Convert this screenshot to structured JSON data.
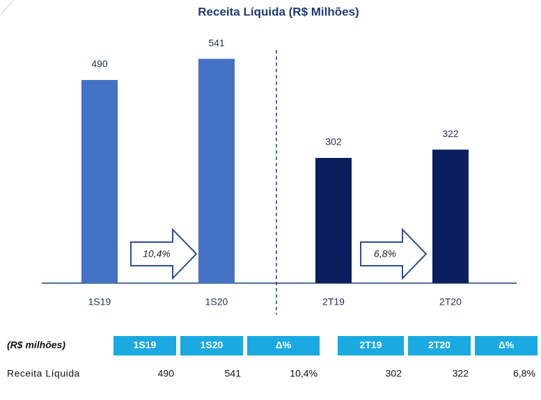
{
  "chart_data": {
    "type": "bar",
    "title": "Receita Líquida (R$ Milhões)",
    "categories": [
      "1S19",
      "1S20",
      "2T19",
      "2T20"
    ],
    "values": [
      490,
      541,
      302,
      322
    ],
    "colors": [
      "#4472c4",
      "#4472c4",
      "#0b1f5e",
      "#0b1f5e"
    ],
    "annotations": [
      "10,4%",
      "6,8%"
    ]
  },
  "table": {
    "header": [
      "(R$ milhões)",
      "1S19",
      "1S20",
      "Δ%",
      "2T19",
      "2T20",
      "Δ%"
    ],
    "rows": [
      [
        "Receita Líquida",
        "490",
        "541",
        "10,4%",
        "302",
        "322",
        "6,8%"
      ]
    ]
  }
}
